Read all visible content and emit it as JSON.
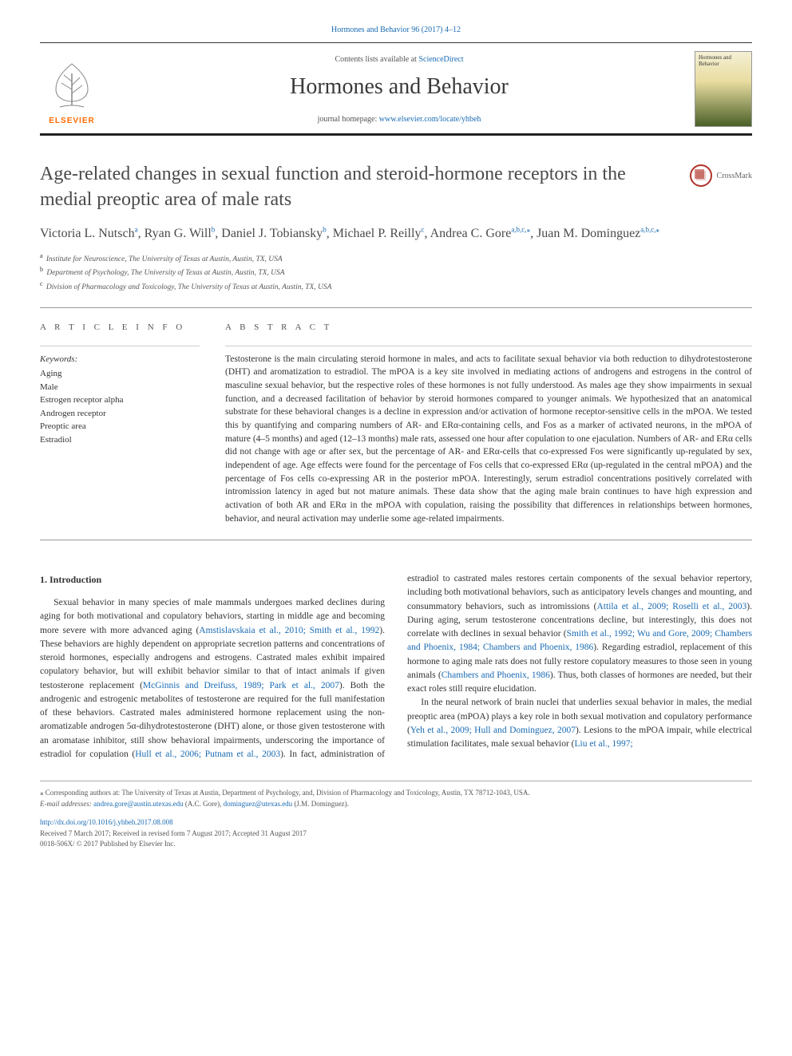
{
  "header": {
    "citation": "Hormones and Behavior 96 (2017) 4–12",
    "contents_text": "Contents lists available at ",
    "contents_link": "ScienceDirect",
    "journal_title": "Hormones and Behavior",
    "homepage_text": "journal homepage: ",
    "homepage_link": "www.elsevier.com/locate/yhbeh",
    "elsevier_label": "ELSEVIER",
    "cover_title": "Hormones and Behavior"
  },
  "crossmark": {
    "label": "CrossMark"
  },
  "title": "Age-related changes in sexual function and steroid-hormone receptors in the medial preoptic area of male rats",
  "authors": [
    {
      "name": "Victoria L. Nutsch",
      "aff": "a"
    },
    {
      "name": "Ryan G. Will",
      "aff": "b"
    },
    {
      "name": "Daniel J. Tobiansky",
      "aff": "b"
    },
    {
      "name": "Michael P. Reilly",
      "aff": "c"
    },
    {
      "name": "Andrea C. Gore",
      "aff": "a,b,c,",
      "corr": true
    },
    {
      "name": "Juan M. Dominguez",
      "aff": "a,b,c,",
      "corr": true
    }
  ],
  "affiliations": [
    {
      "sup": "a",
      "text": "Institute for Neuroscience, The University of Texas at Austin, Austin, TX, USA"
    },
    {
      "sup": "b",
      "text": "Department of Psychology, The University of Texas at Austin, Austin, TX, USA"
    },
    {
      "sup": "c",
      "text": "Division of Pharmacology and Toxicology, The University of Texas at Austin, Austin, TX, USA"
    }
  ],
  "labels": {
    "article_info": "A R T I C L E  I N F O",
    "abstract": "A B S T R A C T",
    "keywords": "Keywords:"
  },
  "keywords": [
    "Aging",
    "Male",
    "Estrogen receptor alpha",
    "Androgen receptor",
    "Preoptic area",
    "Estradiol"
  ],
  "abstract": "Testosterone is the main circulating steroid hormone in males, and acts to facilitate sexual behavior via both reduction to dihydrotestosterone (DHT) and aromatization to estradiol. The mPOA is a key site involved in mediating actions of androgens and estrogens in the control of masculine sexual behavior, but the respective roles of these hormones is not fully understood. As males age they show impairments in sexual function, and a decreased facilitation of behavior by steroid hormones compared to younger animals. We hypothesized that an anatomical substrate for these behavioral changes is a decline in expression and/or activation of hormone receptor-sensitive cells in the mPOA. We tested this by quantifying and comparing numbers of AR- and ERα-containing cells, and Fos as a marker of activated neurons, in the mPOA of mature (4–5 months) and aged (12–13 months) male rats, assessed one hour after copulation to one ejaculation. Numbers of AR- and ERα cells did not change with age or after sex, but the percentage of AR- and ERα-cells that co-expressed Fos were significantly up-regulated by sex, independent of age. Age effects were found for the percentage of Fos cells that co-expressed ERα (up-regulated in the central mPOA) and the percentage of Fos cells co-expressing AR in the posterior mPOA. Interestingly, serum estradiol concentrations positively correlated with intromission latency in aged but not mature animals. These data show that the aging male brain continues to have high expression and activation of both AR and ERα in the mPOA with copulation, raising the possibility that differences in relationships between hormones, behavior, and neural activation may underlie some age-related impairments.",
  "section1": {
    "heading": "1. Introduction",
    "para1_pre": "Sexual behavior in many species of male mammals undergoes marked declines during aging for both motivational and copulatory behaviors, starting in middle age and becoming more severe with more advanced aging (",
    "para1_cite1": "Amstislavskaia et al., 2010; Smith et al., 1992",
    "para1_mid1": "). These behaviors are highly dependent on appropriate secretion patterns and concentrations of steroid hormones, especially androgens and estrogens. Castrated males exhibit impaired copulatory behavior, but will exhibit behavior similar to that of intact animals if given testosterone replacement (",
    "para1_cite2": "McGinnis and Dreifuss, 1989; Park et al., 2007",
    "para1_mid2": "). Both the androgenic and estrogenic metabolites of testosterone are required for the full manifestation of these behaviors. Castrated males administered hormone replacement using the non-aromatizable androgen 5α-dihydrotestosterone (DHT) alone, or those given testosterone with an aromatase inhibitor, still show behavioral impairments, underscoring the importance of estradiol for copulation (",
    "para1_cite3": "Hull et al., 2006; Putnam et al., 2003",
    "para1_mid3": "). In fact, administration of estradiol to castrated males restores certain components of the sexual behavior repertory, including both motivational behaviors, such as anticipatory levels changes and mounting, and consummatory behaviors, such as intromissions (",
    "para1_cite4": "Attila et al., 2009; Roselli et al., 2003",
    "para1_mid4": "). During aging, serum testosterone concentrations decline, but interestingly, this does not correlate with declines in sexual behavior (",
    "para1_cite5": "Smith et al., 1992; Wu and Gore, 2009; Chambers and Phoenix, 1984; Chambers and Phoenix, 1986",
    "para1_mid5": "). Regarding estradiol, replacement of this hormone to aging male rats does not fully restore copulatory measures to those seen in young animals (",
    "para1_cite6": "Chambers and Phoenix, 1986",
    "para1_mid6": "). Thus, both classes of hormones are needed, but their exact roles still require elucidation.",
    "para2_pre": "In the neural network of brain nuclei that underlies sexual behavior in males, the medial preoptic area (mPOA) plays a key role in both sexual motivation and copulatory performance (",
    "para2_cite1": "Yeh et al., 2009; Hull and Dominguez, 2007",
    "para2_mid1": "). Lesions to the mPOA impair, while electrical stimulation facilitates, male sexual behavior (",
    "para2_cite2": "Liu et al., 1997;"
  },
  "footer": {
    "corr_note": "⁎ Corresponding authors at: The University of Texas at Austin, Department of Psychology, and, Division of Pharmacology and Toxicology, Austin, TX 78712-1043, USA.",
    "email_label": "E-mail addresses: ",
    "email1": "andrea.gore@austin.utexas.edu",
    "email1_name": " (A.C. Gore), ",
    "email2": "dominguez@utexas.edu",
    "email2_name": " (J.M. Dominguez).",
    "doi": "http://dx.doi.org/10.1016/j.yhbeh.2017.08.008",
    "received": "Received 7 March 2017; Received in revised form 7 August 2017; Accepted 31 August 2017",
    "issn": "0018-506X/ © 2017 Published by Elsevier Inc."
  },
  "colors": {
    "link": "#1a6bb3",
    "elsevier_orange": "#ff6b00",
    "text": "#333333",
    "rule": "#222222"
  }
}
